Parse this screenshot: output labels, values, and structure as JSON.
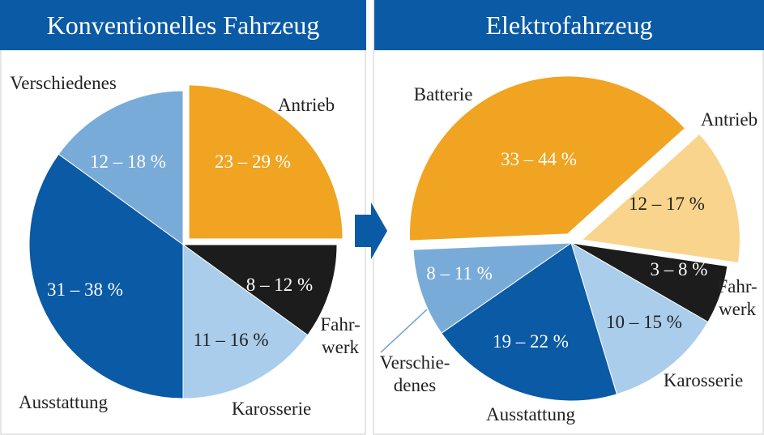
{
  "chart_data": [
    {
      "type": "pie",
      "title": "Konventionelles Fahrzeug",
      "categories": [
        "Antrieb",
        "Fahr-\nwerk",
        "Karosserie",
        "Ausstattung",
        "Verschiedenes"
      ],
      "values": [
        25,
        10,
        15,
        35,
        15
      ],
      "value_labels": [
        "23 – 29 %",
        "8 – 12 %",
        "11 – 16 %",
        "31 – 38 %",
        "12 – 18 %"
      ],
      "colors": [
        "#f0a421",
        "#1c1c1c",
        "#a9cdeb",
        "#0a5aa5",
        "#79abd9"
      ]
    },
    {
      "type": "pie",
      "title": "Elektrofahrzeug",
      "categories": [
        "Antrieb",
        "Fahr-\nwerk",
        "Karosserie",
        "Ausstattung",
        "Verschie-\ndenes",
        "Batterie"
      ],
      "values": [
        14,
        6,
        12,
        20,
        9,
        39
      ],
      "value_labels": [
        "12 – 17 %",
        "3 – 8 %",
        "10 – 15 %",
        "19 – 22 %",
        "8 – 11 %",
        "33 – 44 %"
      ],
      "colors": [
        "#f8d48d",
        "#1c1c1c",
        "#a9cdeb",
        "#0a5aa5",
        "#79abd9",
        "#f0a421"
      ]
    }
  ]
}
